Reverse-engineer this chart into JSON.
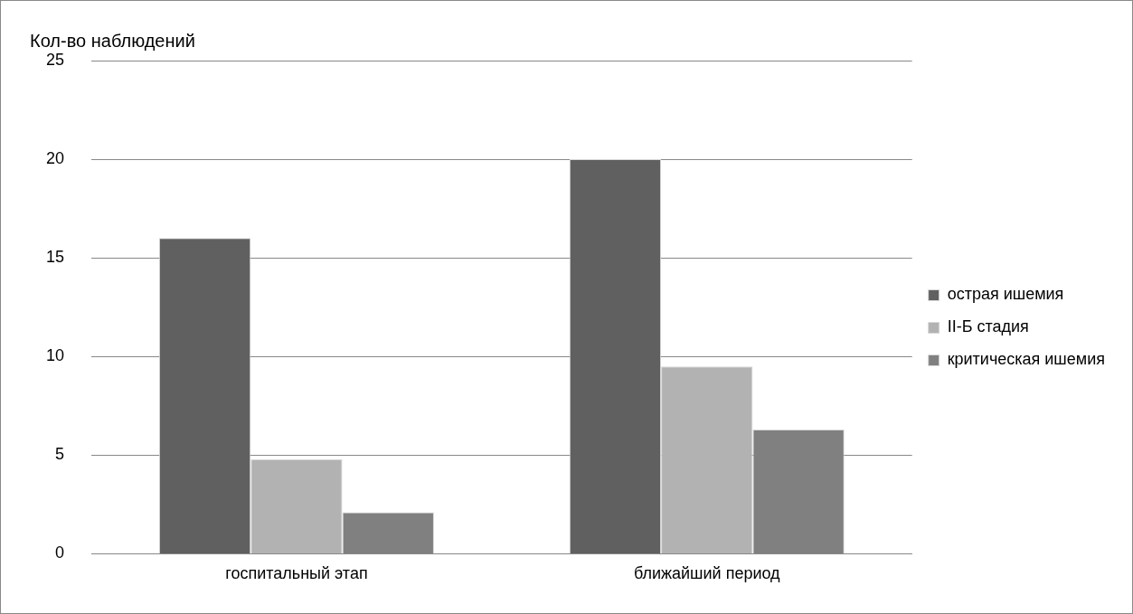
{
  "chart_data": {
    "type": "bar",
    "ylabel": "Кол-во наблюдений",
    "categories": [
      "госпитальный этап",
      "ближайший период"
    ],
    "series": [
      {
        "name": "острая ишемия",
        "color": "#606060",
        "values": [
          16,
          20
        ]
      },
      {
        "name": "II-Б стадия",
        "color": "#b2b2b2",
        "values": [
          4.8,
          9.5
        ]
      },
      {
        "name": "критическая ишемия",
        "color": "#808080",
        "values": [
          2.1,
          6.3
        ]
      }
    ],
    "ylim": [
      0,
      25
    ],
    "yticks": [
      0,
      5,
      10,
      15,
      20,
      25
    ],
    "grid": "y",
    "legend": "right"
  }
}
